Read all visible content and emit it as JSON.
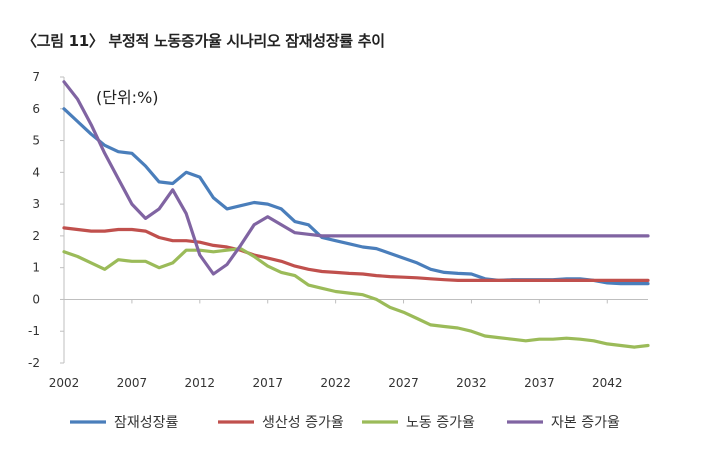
{
  "figure_title": "〈그림 11〉 부정적 노동증가율 시나리오 잠재성장률 추이",
  "colors": {
    "potential_growth": "#4a7ebb",
    "productivity": "#c0504d",
    "labor": "#9bbb59",
    "capital": "#8064a2",
    "axis": "#bfbfbf"
  },
  "chart_data": {
    "type": "line",
    "title": "〈그림 11〉 부정적 노동증가율 시나리오 잠재성장률 추이",
    "unit_label": "(단위:%)",
    "xlabel": "",
    "ylabel": "",
    "x_range": [
      2002,
      2045
    ],
    "ylim": [
      -2,
      7
    ],
    "y_ticks": [
      -2,
      -1,
      0,
      1,
      2,
      3,
      4,
      5,
      6,
      7
    ],
    "x_ticks": [
      2002,
      2007,
      2012,
      2017,
      2022,
      2027,
      2032,
      2037,
      2042
    ],
    "grid": false,
    "legend": "bottom",
    "series": [
      {
        "name": "잠재성장률",
        "color": "#4a7ebb",
        "points": [
          [
            2002,
            6.0
          ],
          [
            2003,
            5.6
          ],
          [
            2004,
            5.2
          ],
          [
            2005,
            4.85
          ],
          [
            2006,
            4.65
          ],
          [
            2007,
            4.6
          ],
          [
            2008,
            4.2
          ],
          [
            2009,
            3.7
          ],
          [
            2010,
            3.65
          ],
          [
            2011,
            4.0
          ],
          [
            2012,
            3.85
          ],
          [
            2013,
            3.2
          ],
          [
            2014,
            2.85
          ],
          [
            2015,
            2.95
          ],
          [
            2016,
            3.05
          ],
          [
            2017,
            3.0
          ],
          [
            2018,
            2.85
          ],
          [
            2019,
            2.45
          ],
          [
            2020,
            2.35
          ],
          [
            2021,
            1.95
          ],
          [
            2022,
            1.85
          ],
          [
            2023,
            1.75
          ],
          [
            2024,
            1.65
          ],
          [
            2025,
            1.6
          ],
          [
            2026,
            1.45
          ],
          [
            2027,
            1.3
          ],
          [
            2028,
            1.15
          ],
          [
            2029,
            0.95
          ],
          [
            2030,
            0.85
          ],
          [
            2031,
            0.82
          ],
          [
            2032,
            0.8
          ],
          [
            2033,
            0.65
          ],
          [
            2034,
            0.6
          ],
          [
            2035,
            0.62
          ],
          [
            2036,
            0.62
          ],
          [
            2037,
            0.62
          ],
          [
            2038,
            0.62
          ],
          [
            2039,
            0.65
          ],
          [
            2040,
            0.65
          ],
          [
            2041,
            0.6
          ],
          [
            2042,
            0.52
          ],
          [
            2043,
            0.5
          ],
          [
            2044,
            0.5
          ],
          [
            2045,
            0.5
          ]
        ]
      },
      {
        "name": "생산성 증가율",
        "color": "#c0504d",
        "points": [
          [
            2002,
            2.25
          ],
          [
            2003,
            2.2
          ],
          [
            2004,
            2.15
          ],
          [
            2005,
            2.15
          ],
          [
            2006,
            2.2
          ],
          [
            2007,
            2.2
          ],
          [
            2008,
            2.15
          ],
          [
            2009,
            1.95
          ],
          [
            2010,
            1.85
          ],
          [
            2011,
            1.85
          ],
          [
            2012,
            1.8
          ],
          [
            2013,
            1.7
          ],
          [
            2014,
            1.65
          ],
          [
            2015,
            1.55
          ],
          [
            2016,
            1.4
          ],
          [
            2017,
            1.3
          ],
          [
            2018,
            1.2
          ],
          [
            2019,
            1.05
          ],
          [
            2020,
            0.95
          ],
          [
            2021,
            0.88
          ],
          [
            2022,
            0.85
          ],
          [
            2023,
            0.82
          ],
          [
            2024,
            0.8
          ],
          [
            2025,
            0.75
          ],
          [
            2026,
            0.72
          ],
          [
            2027,
            0.7
          ],
          [
            2028,
            0.68
          ],
          [
            2029,
            0.65
          ],
          [
            2030,
            0.62
          ],
          [
            2031,
            0.6
          ],
          [
            2032,
            0.6
          ],
          [
            2033,
            0.6
          ],
          [
            2034,
            0.6
          ],
          [
            2035,
            0.6
          ],
          [
            2036,
            0.6
          ],
          [
            2037,
            0.6
          ],
          [
            2038,
            0.6
          ],
          [
            2039,
            0.6
          ],
          [
            2040,
            0.6
          ],
          [
            2041,
            0.6
          ],
          [
            2042,
            0.6
          ],
          [
            2043,
            0.6
          ],
          [
            2044,
            0.6
          ],
          [
            2045,
            0.6
          ]
        ]
      },
      {
        "name": "노동 증가율",
        "color": "#9bbb59",
        "points": [
          [
            2002,
            1.5
          ],
          [
            2003,
            1.35
          ],
          [
            2004,
            1.15
          ],
          [
            2005,
            0.95
          ],
          [
            2006,
            1.25
          ],
          [
            2007,
            1.2
          ],
          [
            2008,
            1.2
          ],
          [
            2009,
            1.0
          ],
          [
            2010,
            1.15
          ],
          [
            2011,
            1.55
          ],
          [
            2012,
            1.55
          ],
          [
            2013,
            1.5
          ],
          [
            2014,
            1.55
          ],
          [
            2015,
            1.6
          ],
          [
            2016,
            1.35
          ],
          [
            2017,
            1.05
          ],
          [
            2018,
            0.85
          ],
          [
            2019,
            0.75
          ],
          [
            2020,
            0.45
          ],
          [
            2021,
            0.35
          ],
          [
            2022,
            0.25
          ],
          [
            2023,
            0.2
          ],
          [
            2024,
            0.15
          ],
          [
            2025,
            0.0
          ],
          [
            2026,
            -0.25
          ],
          [
            2027,
            -0.4
          ],
          [
            2028,
            -0.6
          ],
          [
            2029,
            -0.8
          ],
          [
            2030,
            -0.85
          ],
          [
            2031,
            -0.9
          ],
          [
            2032,
            -1.0
          ],
          [
            2033,
            -1.15
          ],
          [
            2034,
            -1.2
          ],
          [
            2035,
            -1.25
          ],
          [
            2036,
            -1.3
          ],
          [
            2037,
            -1.25
          ],
          [
            2038,
            -1.25
          ],
          [
            2039,
            -1.22
          ],
          [
            2040,
            -1.25
          ],
          [
            2041,
            -1.3
          ],
          [
            2042,
            -1.4
          ],
          [
            2043,
            -1.45
          ],
          [
            2044,
            -1.5
          ],
          [
            2045,
            -1.45
          ]
        ]
      },
      {
        "name": "자본 증가율",
        "color": "#8064a2",
        "points": [
          [
            2002,
            6.85
          ],
          [
            2003,
            6.3
          ],
          [
            2004,
            5.5
          ],
          [
            2005,
            4.6
          ],
          [
            2006,
            3.8
          ],
          [
            2007,
            3.0
          ],
          [
            2008,
            2.55
          ],
          [
            2009,
            2.85
          ],
          [
            2010,
            3.45
          ],
          [
            2011,
            2.7
          ],
          [
            2012,
            1.4
          ],
          [
            2013,
            0.8
          ],
          [
            2014,
            1.1
          ],
          [
            2015,
            1.7
          ],
          [
            2016,
            2.35
          ],
          [
            2017,
            2.6
          ],
          [
            2018,
            2.35
          ],
          [
            2019,
            2.1
          ],
          [
            2020,
            2.05
          ],
          [
            2021,
            2.0
          ],
          [
            2022,
            2.0
          ],
          [
            2023,
            2.0
          ],
          [
            2024,
            2.0
          ],
          [
            2025,
            2.0
          ],
          [
            2026,
            2.0
          ],
          [
            2027,
            2.0
          ],
          [
            2028,
            2.0
          ],
          [
            2029,
            2.0
          ],
          [
            2030,
            2.0
          ],
          [
            2031,
            2.0
          ],
          [
            2032,
            2.0
          ],
          [
            2033,
            2.0
          ],
          [
            2034,
            2.0
          ],
          [
            2035,
            2.0
          ],
          [
            2036,
            2.0
          ],
          [
            2037,
            2.0
          ],
          [
            2038,
            2.0
          ],
          [
            2039,
            2.0
          ],
          [
            2040,
            2.0
          ],
          [
            2041,
            2.0
          ],
          [
            2042,
            2.0
          ],
          [
            2043,
            2.0
          ],
          [
            2044,
            2.0
          ],
          [
            2045,
            2.0
          ]
        ]
      }
    ]
  }
}
